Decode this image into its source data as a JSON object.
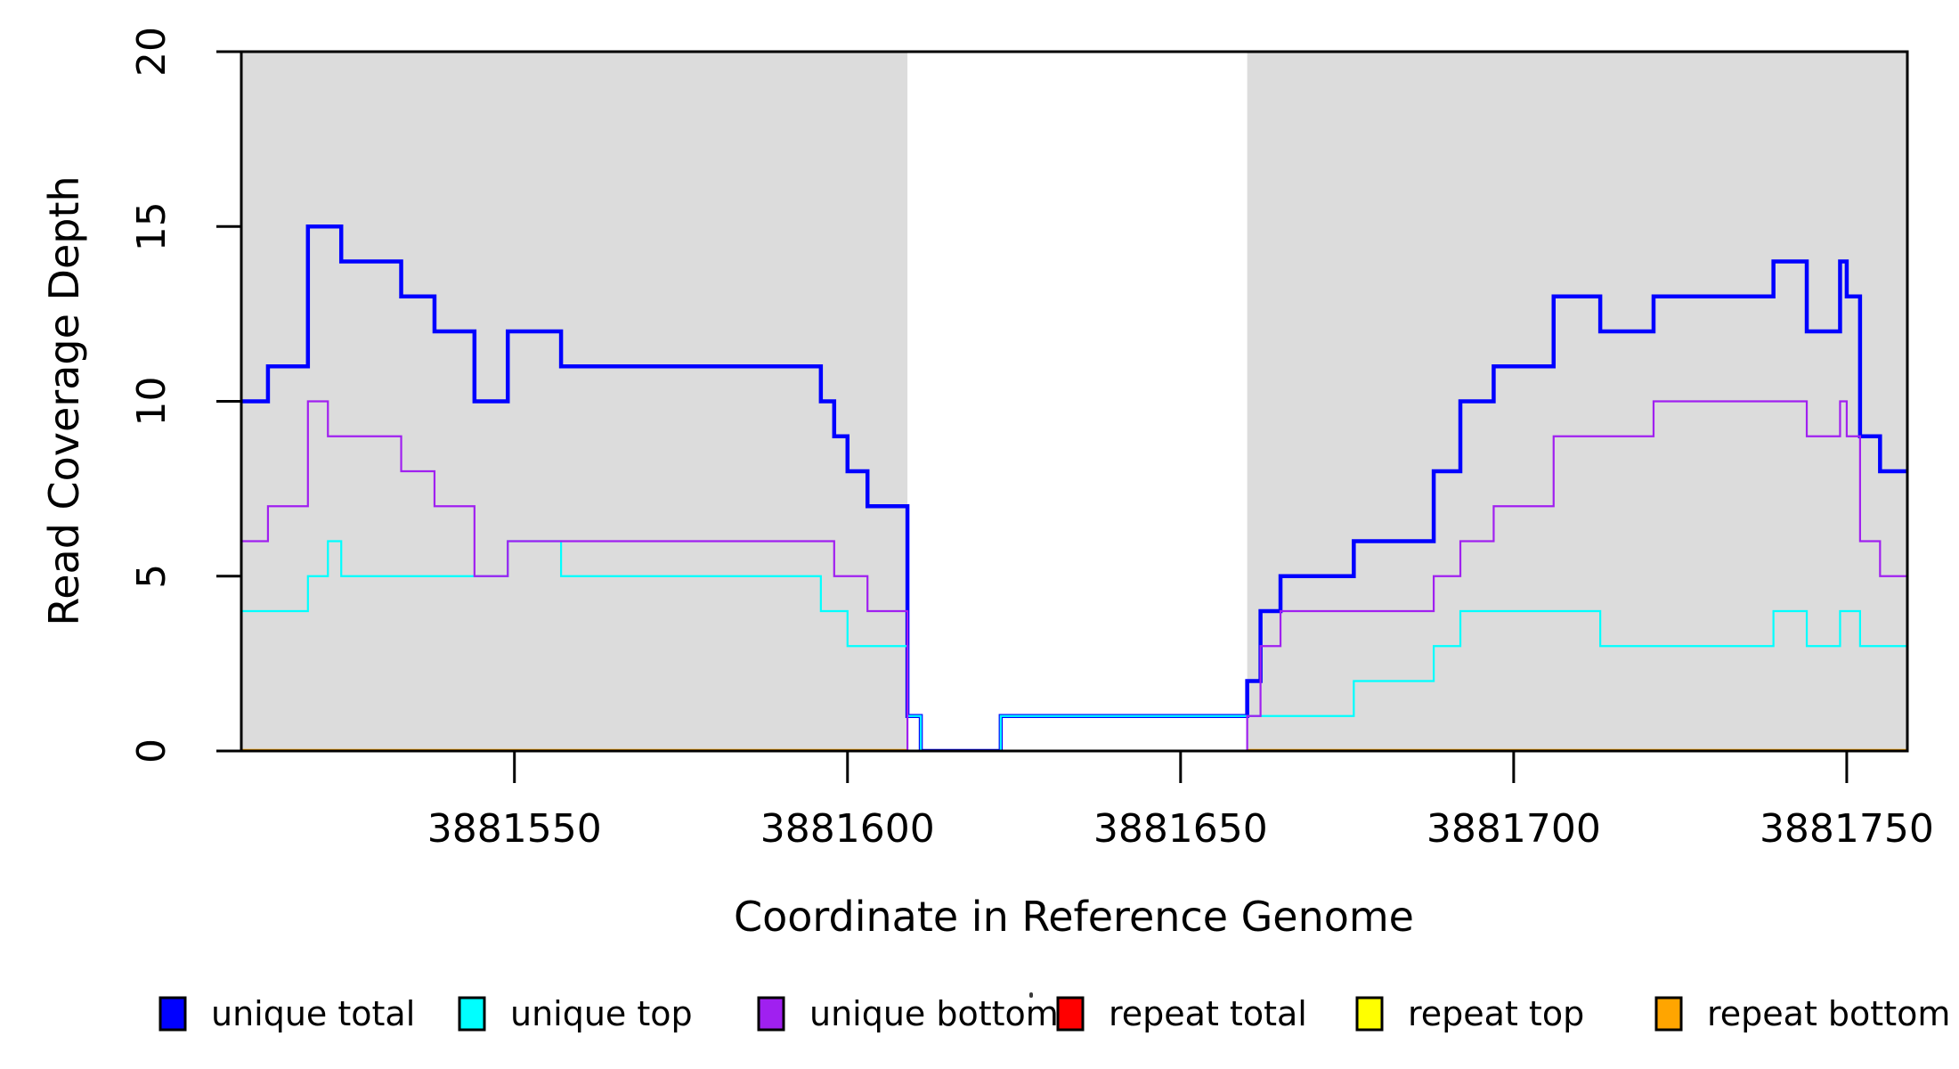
{
  "chart_data": {
    "type": "line",
    "subtype": "step-coverage",
    "xlabel": "Coordinate in Reference Genome",
    "ylabel": "Read Coverage Depth",
    "xlim": [
      3881509,
      3881759.1
    ],
    "ylim": [
      0,
      20
    ],
    "grid": false,
    "x_ticks": [
      {
        "value": 3881550,
        "label": "3881550"
      },
      {
        "value": 3881600,
        "label": "3881600"
      },
      {
        "value": 3881650,
        "label": "3881650"
      },
      {
        "value": 3881700,
        "label": "3881700"
      },
      {
        "value": 3881750,
        "label": "3881750"
      }
    ],
    "y_ticks": [
      {
        "value": 0,
        "label": "0"
      },
      {
        "value": 5,
        "label": "5"
      },
      {
        "value": 10,
        "label": "10"
      },
      {
        "value": 15,
        "label": "15"
      },
      {
        "value": 20,
        "label": "20"
      }
    ],
    "region_color": "#DCDCDC",
    "shaded_regions": [
      {
        "from": 3881509,
        "to": 3881609
      },
      {
        "from": 3881660,
        "to": 3881759.1
      }
    ],
    "series": [
      {
        "id": "repeat-top",
        "name": "repeat top",
        "color": "#FFFF00",
        "width": 2.5,
        "segments": [
          {
            "steps": [
              [
                3881509,
                0
              ]
            ],
            "end": 3881759.1
          }
        ]
      },
      {
        "id": "repeat-total",
        "name": "repeat total",
        "color": "#FF0000",
        "width": 2.5,
        "segments": [
          {
            "steps": [
              [
                3881509,
                0
              ]
            ],
            "end": 3881759.1
          }
        ]
      },
      {
        "id": "repeat-bottom",
        "name": "repeat bottom",
        "color": "#FFA500",
        "width": 4.5,
        "segments": [
          {
            "steps": [
              [
                3881509,
                0
              ]
            ],
            "end": 3881609
          },
          {
            "start": 3881660,
            "steps": [
              [
                3881660,
                0
              ]
            ],
            "end": 3881759.1
          }
        ]
      },
      {
        "id": "unique-total",
        "name": "unique total",
        "color": "#0000FF",
        "width": 4.5,
        "segments": [
          {
            "steps": [
              [
                3881509,
                10
              ],
              [
                3881513,
                11
              ],
              [
                3881519,
                15
              ],
              [
                3881524,
                14
              ],
              [
                3881533,
                13
              ],
              [
                3881538,
                12
              ],
              [
                3881544,
                10
              ],
              [
                3881549,
                12
              ],
              [
                3881557,
                11
              ],
              [
                3881596,
                10
              ],
              [
                3881598,
                9
              ],
              [
                3881600,
                8
              ],
              [
                3881603,
                7
              ],
              [
                3881609,
                1
              ],
              [
                3881611,
                0
              ],
              [
                3881623,
                1
              ],
              [
                3881660,
                2
              ],
              [
                3881662,
                4
              ],
              [
                3881665,
                5
              ],
              [
                3881676,
                6
              ],
              [
                3881688,
                8
              ],
              [
                3881692,
                10
              ],
              [
                3881697,
                11
              ],
              [
                3881706,
                13
              ],
              [
                3881713,
                12
              ],
              [
                3881721,
                13
              ],
              [
                3881739,
                14
              ],
              [
                3881744,
                12
              ],
              [
                3881749,
                14
              ],
              [
                3881750,
                13
              ],
              [
                3881752,
                9
              ],
              [
                3881755,
                8
              ]
            ],
            "end": 3881759.1
          }
        ]
      },
      {
        "id": "unique-top",
        "name": "unique top",
        "color": "#00FFFF",
        "width": 2.2,
        "segments": [
          {
            "steps": [
              [
                3881509,
                4
              ],
              [
                3881519,
                5
              ],
              [
                3881522,
                6
              ],
              [
                3881524,
                5
              ],
              [
                3881549,
                6
              ],
              [
                3881557,
                5
              ],
              [
                3881596,
                4
              ],
              [
                3881600,
                3
              ],
              [
                3881609,
                1
              ],
              [
                3881611,
                0
              ],
              [
                3881623,
                1
              ],
              [
                3881676,
                2
              ],
              [
                3881688,
                3
              ],
              [
                3881692,
                4
              ],
              [
                3881713,
                3
              ],
              [
                3881739,
                4
              ],
              [
                3881744,
                3
              ],
              [
                3881749,
                4
              ],
              [
                3881752,
                3
              ]
            ],
            "end": 3881759.1
          }
        ]
      },
      {
        "id": "unique-bottom",
        "name": "unique bottom",
        "color": "#A020F0",
        "width": 2.2,
        "segments": [
          {
            "steps": [
              [
                3881509,
                6
              ],
              [
                3881513,
                7
              ],
              [
                3881519,
                10
              ],
              [
                3881522,
                9
              ],
              [
                3881533,
                8
              ],
              [
                3881538,
                7
              ],
              [
                3881544,
                5
              ],
              [
                3881549,
                6
              ],
              [
                3881598,
                5
              ],
              [
                3881603,
                4
              ],
              [
                3881609,
                0
              ],
              [
                3881660,
                1
              ],
              [
                3881662,
                3
              ],
              [
                3881665,
                4
              ],
              [
                3881688,
                5
              ],
              [
                3881692,
                6
              ],
              [
                3881697,
                7
              ],
              [
                3881706,
                9
              ],
              [
                3881721,
                10
              ],
              [
                3881744,
                9
              ],
              [
                3881749,
                10
              ],
              [
                3881750,
                9
              ],
              [
                3881752,
                6
              ],
              [
                3881755,
                5
              ]
            ],
            "end": 3881759.1
          }
        ]
      }
    ],
    "legend": [
      {
        "label": "unique total",
        "color": "#0000FF"
      },
      {
        "label": "unique top",
        "color": "#00FFFF"
      },
      {
        "label": "unique bottom",
        "color": "#A020F0"
      },
      {
        "label": "repeat total",
        "color": "#FF0000"
      },
      {
        "label": "repeat top",
        "color": "#FFFF00"
      },
      {
        "label": "repeat bottom",
        "color": "#FFA500"
      }
    ],
    "legend_position": "bottom"
  }
}
